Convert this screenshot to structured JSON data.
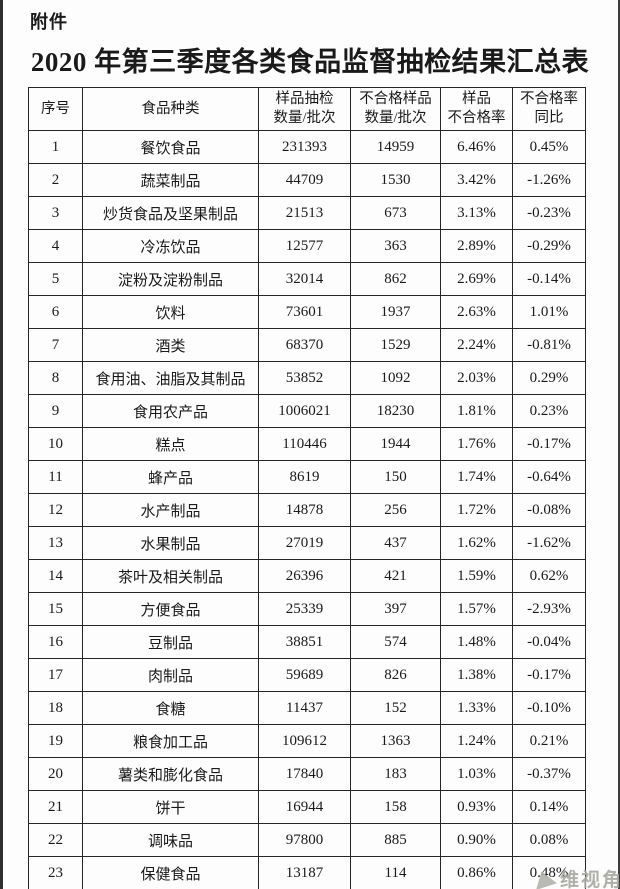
{
  "page": {
    "attachment_label": "附件",
    "title": "2020 年第三季度各类食品监督抽检结果汇总表",
    "watermark_text": "维视角",
    "watermark_icon": "triangle-logo-icon",
    "colors": {
      "text": "#1a1a1a",
      "border": "#262626",
      "background": "#fdfdfd",
      "watermark": "#a8a8a2"
    }
  },
  "table": {
    "columns": [
      {
        "key": "no",
        "label": "序号"
      },
      {
        "key": "category",
        "label": "食品种类"
      },
      {
        "key": "samples",
        "label": "样品抽检\n数量/批次"
      },
      {
        "key": "failed_samples",
        "label": "不合格样品\n数量/批次"
      },
      {
        "key": "fail_rate",
        "label": "样品\n不合格率"
      },
      {
        "key": "yoy",
        "label": "不合格率\n同比"
      }
    ],
    "rows": [
      [
        "1",
        "餐饮食品",
        "231393",
        "14959",
        "6.46%",
        "0.45%"
      ],
      [
        "2",
        "蔬菜制品",
        "44709",
        "1530",
        "3.42%",
        "-1.26%"
      ],
      [
        "3",
        "炒货食品及坚果制品",
        "21513",
        "673",
        "3.13%",
        "-0.23%"
      ],
      [
        "4",
        "冷冻饮品",
        "12577",
        "363",
        "2.89%",
        "-0.29%"
      ],
      [
        "5",
        "淀粉及淀粉制品",
        "32014",
        "862",
        "2.69%",
        "-0.14%"
      ],
      [
        "6",
        "饮料",
        "73601",
        "1937",
        "2.63%",
        "1.01%"
      ],
      [
        "7",
        "酒类",
        "68370",
        "1529",
        "2.24%",
        "-0.81%"
      ],
      [
        "8",
        "食用油、油脂及其制品",
        "53852",
        "1092",
        "2.03%",
        "0.29%"
      ],
      [
        "9",
        "食用农产品",
        "1006021",
        "18230",
        "1.81%",
        "0.23%"
      ],
      [
        "10",
        "糕点",
        "110446",
        "1944",
        "1.76%",
        "-0.17%"
      ],
      [
        "11",
        "蜂产品",
        "8619",
        "150",
        "1.74%",
        "-0.64%"
      ],
      [
        "12",
        "水产制品",
        "14878",
        "256",
        "1.72%",
        "-0.08%"
      ],
      [
        "13",
        "水果制品",
        "27019",
        "437",
        "1.62%",
        "-1.62%"
      ],
      [
        "14",
        "茶叶及相关制品",
        "26396",
        "421",
        "1.59%",
        "0.62%"
      ],
      [
        "15",
        "方便食品",
        "25339",
        "397",
        "1.57%",
        "-2.93%"
      ],
      [
        "16",
        "豆制品",
        "38851",
        "574",
        "1.48%",
        "-0.04%"
      ],
      [
        "17",
        "肉制品",
        "59689",
        "826",
        "1.38%",
        "-0.17%"
      ],
      [
        "18",
        "食糖",
        "11437",
        "152",
        "1.33%",
        "-0.10%"
      ],
      [
        "19",
        "粮食加工品",
        "109612",
        "1363",
        "1.24%",
        "0.21%"
      ],
      [
        "20",
        "薯类和膨化食品",
        "17840",
        "183",
        "1.03%",
        "-0.37%"
      ],
      [
        "21",
        "饼干",
        "16944",
        "158",
        "0.93%",
        "0.14%"
      ],
      [
        "22",
        "调味品",
        "97800",
        "885",
        "0.90%",
        "0.08%"
      ],
      [
        "23",
        "保健食品",
        "13187",
        "114",
        "0.86%",
        "0.48%"
      ]
    ]
  }
}
